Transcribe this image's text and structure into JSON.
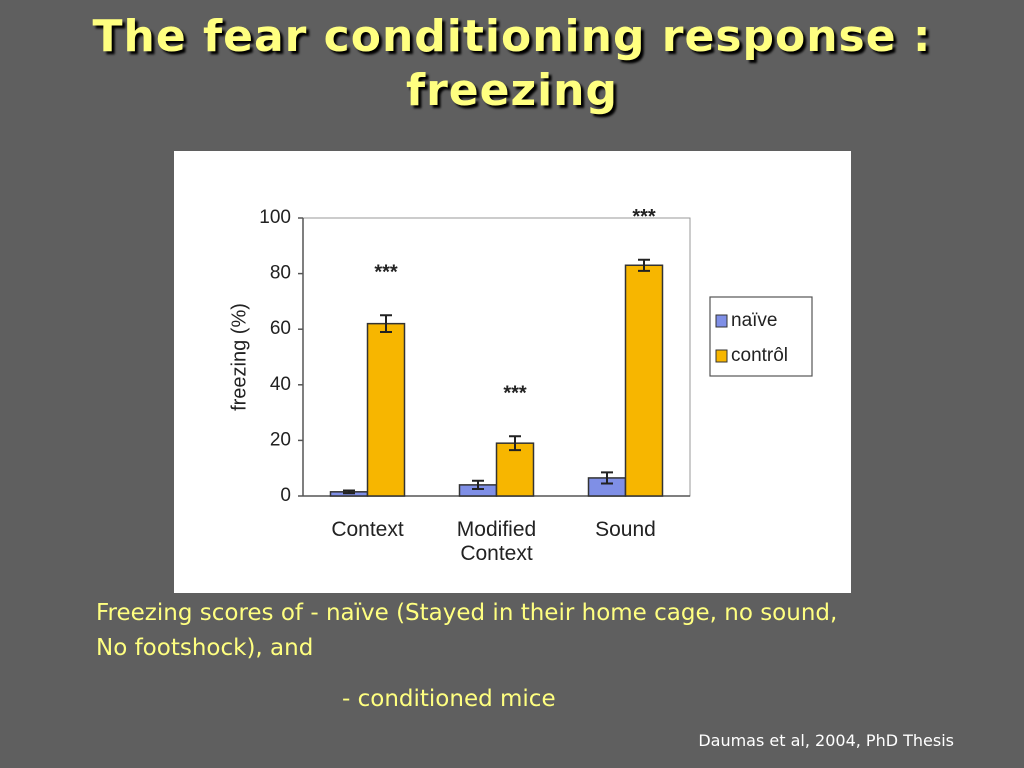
{
  "slide": {
    "title": "The fear conditioning response : freezing",
    "caption": [
      "Freezing scores of - naïve (Stayed in their home cage, no sound,",
      "No footshock),  and",
      "- conditioned mice"
    ],
    "citation": "Daumas et al, 2004, PhD Thesis"
  },
  "chart_data": {
    "type": "bar",
    "ylabel": "freezing (%)",
    "categories": [
      "Context",
      "Modified Context",
      "Sound"
    ],
    "series": [
      {
        "name": "naïve",
        "color": "#7f8fe6",
        "values": [
          1.5,
          4,
          6.5
        ],
        "errors": [
          0.5,
          1.5,
          2
        ]
      },
      {
        "name": "contrôl",
        "color": "#f7b600",
        "values": [
          62,
          19,
          83
        ],
        "errors": [
          3,
          2.5,
          2
        ]
      }
    ],
    "annotations": [
      "***",
      "***",
      "***"
    ],
    "ylim": [
      0,
      100
    ],
    "yticks": [
      0,
      20,
      40,
      60,
      80,
      100
    ],
    "legend": "right"
  }
}
